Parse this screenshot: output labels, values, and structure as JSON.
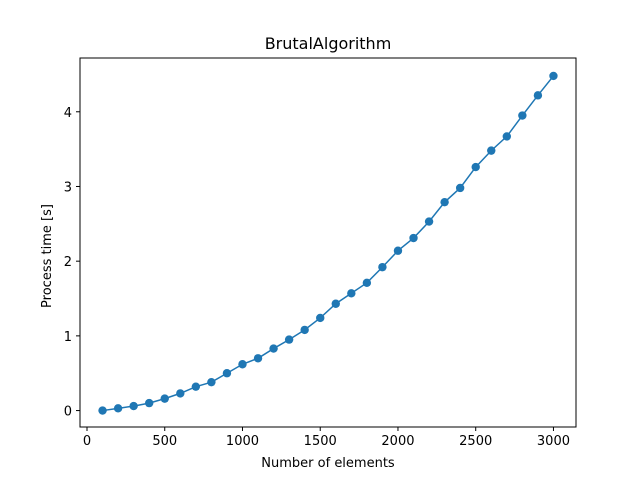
{
  "chart_data": {
    "type": "line",
    "title": "BrutalAlgorithm",
    "xlabel": "Number of elements",
    "ylabel": "Process time [s]",
    "xlim": [
      -45,
      3145
    ],
    "ylim": [
      -0.22,
      4.72
    ],
    "xticks": [
      0,
      500,
      1000,
      1500,
      2000,
      2500,
      3000
    ],
    "yticks": [
      0,
      1,
      2,
      3,
      4
    ],
    "grid": false,
    "marker": "circle",
    "color": "#1f77b4",
    "x": [
      100,
      200,
      300,
      400,
      500,
      600,
      700,
      800,
      900,
      1000,
      1100,
      1200,
      1300,
      1400,
      1500,
      1600,
      1700,
      1800,
      1900,
      2000,
      2100,
      2200,
      2300,
      2400,
      2500,
      2600,
      2700,
      2800,
      2900,
      3000
    ],
    "y": [
      0.0,
      0.03,
      0.06,
      0.1,
      0.16,
      0.23,
      0.32,
      0.38,
      0.5,
      0.62,
      0.7,
      0.83,
      0.95,
      1.08,
      1.24,
      1.43,
      1.57,
      1.71,
      1.92,
      2.14,
      2.31,
      2.53,
      2.79,
      2.98,
      3.26,
      3.48,
      3.67,
      3.95,
      4.22,
      4.48
    ]
  }
}
